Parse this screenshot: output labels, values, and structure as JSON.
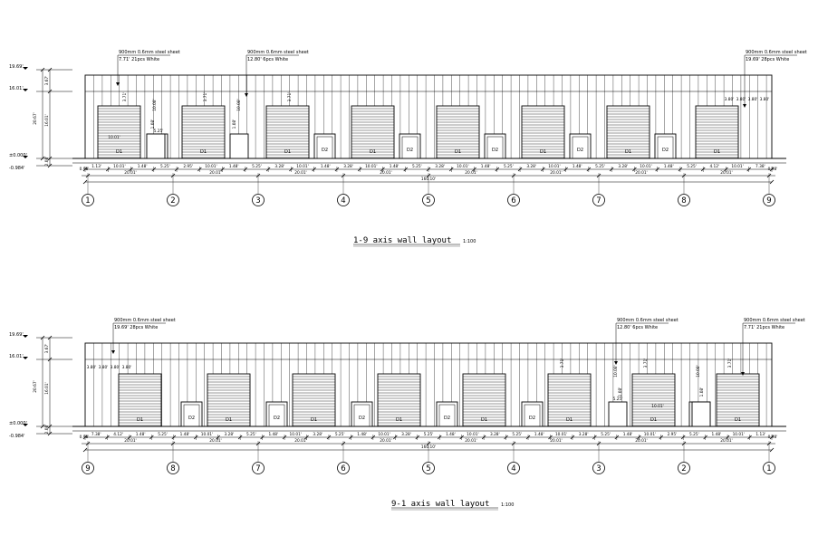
{
  "drawings": [
    {
      "id": "d1",
      "caption": "1-9 axis wall layout",
      "scale": "1:100",
      "callouts": [
        {
          "line1": "900mm 0.6mm steel sheet",
          "line2": "7.71' 21pcs White"
        },
        {
          "line1": "900mm 0.6mm steel sheet",
          "line2": "12.80' 6pcs White"
        },
        {
          "line1": "900mm 0.6mm steel sheet",
          "line2": "19.69' 28pcs White"
        }
      ],
      "elev_labels": [
        "19.69'",
        "16.01'",
        "±0.000'",
        "-0.984'"
      ],
      "height_dims": [
        "3.67'",
        "20.67'",
        "16.01'",
        "2.08'"
      ],
      "door_labels": [
        "D1",
        "D2",
        "D1",
        "D2",
        "D1",
        "D2",
        "D1",
        "D2",
        "D1",
        "D2",
        "D1",
        "D2",
        "D1",
        "D2",
        "D1"
      ],
      "detail_dims": [
        "3.71'",
        "10.08'",
        "3.71'",
        "10.08'",
        "3.71'",
        "3.80'",
        "3.80'",
        "3.80'",
        "3.80'",
        "10.01'",
        "5.25'",
        "1.08'",
        "1.08'"
      ],
      "bay_dims": [
        "1.13'",
        "10.01'",
        "1.48'",
        "5.25'",
        "2.95'",
        "10.01'",
        "1.48'",
        "5.25'",
        "3.28'",
        "10.01'",
        "1.48'",
        "3.28'",
        "10.01'",
        "1.48'",
        "5.25'",
        "3.28'",
        "10.01'",
        "1.48'",
        "5.25'",
        "3.28'",
        "10.01'",
        "1.48'",
        "5.25'",
        "3.28'",
        "10.01'",
        "1.48'",
        "5.25'",
        "4.12'",
        "10.01'",
        "7.38'"
      ],
      "axis_dims": [
        "20.01'",
        "20.01'",
        "20.01'",
        "20.01'",
        "20.01'",
        "20.01'",
        "20.01'",
        "20.01'"
      ],
      "total_dim": "160.10'",
      "end_offsets": [
        "0.98'",
        "0.98'"
      ],
      "axes": [
        "1",
        "2",
        "3",
        "4",
        "5",
        "6",
        "7",
        "8",
        "9"
      ]
    },
    {
      "id": "d2",
      "caption": "9-1 axis wall layout",
      "scale": "1:100",
      "callouts": [
        {
          "line1": "900mm 0.6mm steel sheet",
          "line2": "19.69' 28pcs White"
        },
        {
          "line1": "900mm 0.6mm steel sheet",
          "line2": "12.80' 6pcs White"
        },
        {
          "line1": "900mm 0.6mm steel sheet",
          "line2": "7.71' 21pcs White"
        }
      ],
      "elev_labels": [
        "19.69'",
        "16.01'",
        "±0.000'",
        "-0.984'"
      ],
      "height_dims": [
        "3.67'",
        "20.67'",
        "16.01'",
        "2.08'"
      ],
      "door_labels": [
        "D1",
        "D2",
        "D1",
        "D2",
        "D1",
        "D2",
        "D1",
        "D2",
        "D1",
        "D2",
        "D1",
        "D2",
        "D1",
        "D2",
        "D1"
      ],
      "detail_dims": [
        "3.80'",
        "3.80'",
        "3.80'",
        "3.80'",
        "3.71'",
        "10.08'",
        "3.71'",
        "10.08'",
        "5.25'",
        "10.01'",
        "1.08'",
        "1.08'",
        "3.71'"
      ],
      "bay_dims": [
        "7.38'",
        "4.12'",
        "1.48'",
        "5.25'",
        "1.48'",
        "10.01'",
        "3.28'",
        "5.25'",
        "1.48'",
        "10.01'",
        "3.28'",
        "5.25'",
        "1.48'",
        "10.01'",
        "3.28'",
        "5.25'",
        "1.48'",
        "10.01'",
        "3.28'",
        "5.25'",
        "1.48'",
        "10.01'",
        "3.28'",
        "5.25'",
        "1.48'",
        "10.01'",
        "2.95'",
        "5.25'",
        "1.48'",
        "10.01'",
        "1.13'"
      ],
      "axis_dims": [
        "20.01'",
        "20.01'",
        "20.01'",
        "20.01'",
        "20.01'",
        "20.01'",
        "20.01'",
        "20.01'"
      ],
      "total_dim": "160.10'",
      "end_offsets": [
        "0.98'",
        "0.98'"
      ],
      "axes": [
        "9",
        "8",
        "7",
        "6",
        "5",
        "4",
        "3",
        "2",
        "1"
      ]
    }
  ]
}
